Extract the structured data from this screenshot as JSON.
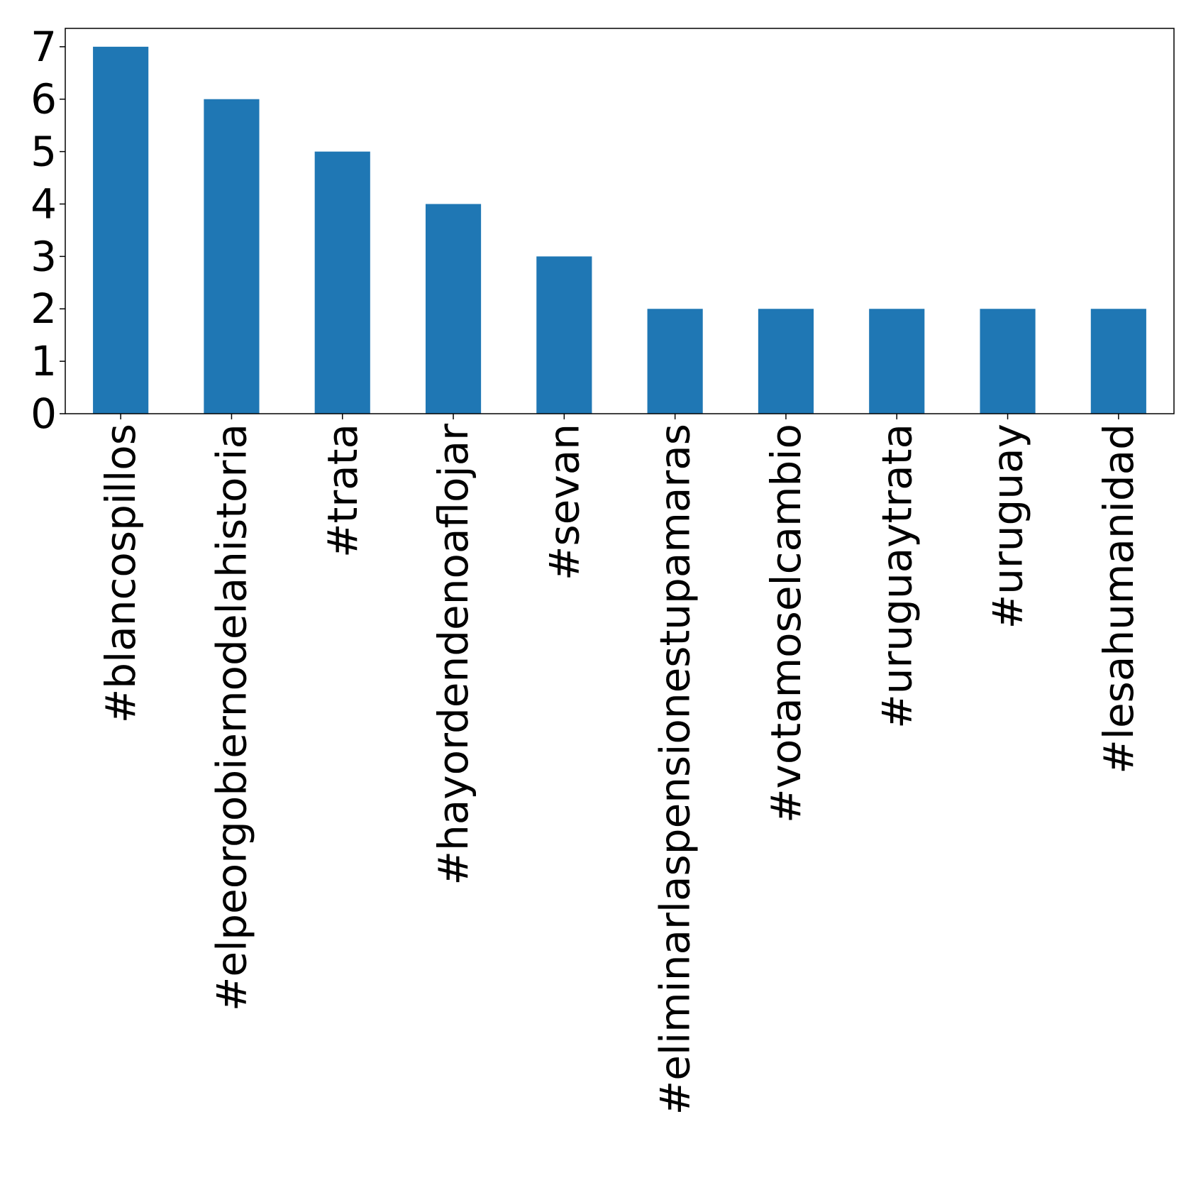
{
  "chart_data": {
    "type": "bar",
    "title": "",
    "xlabel": "",
    "ylabel": "",
    "categories": [
      "#blancospillos",
      "#elpeorgobiernodelahistoria",
      "#trata",
      "#hayordendenoaflojar",
      "#sevan",
      "#eliminarlaspensionestupamaras",
      "#votamoselcambio",
      "#uruguaytrata",
      "#uruguay",
      "#lesahumanidad"
    ],
    "values": [
      7,
      6,
      5,
      4,
      3,
      2,
      2,
      2,
      2,
      2
    ],
    "ylim": [
      0,
      7.35
    ],
    "yticks": [
      0,
      1,
      2,
      3,
      4,
      5,
      6,
      7
    ],
    "bar_color": "#1f77b4",
    "grid": false,
    "legend": false
  }
}
